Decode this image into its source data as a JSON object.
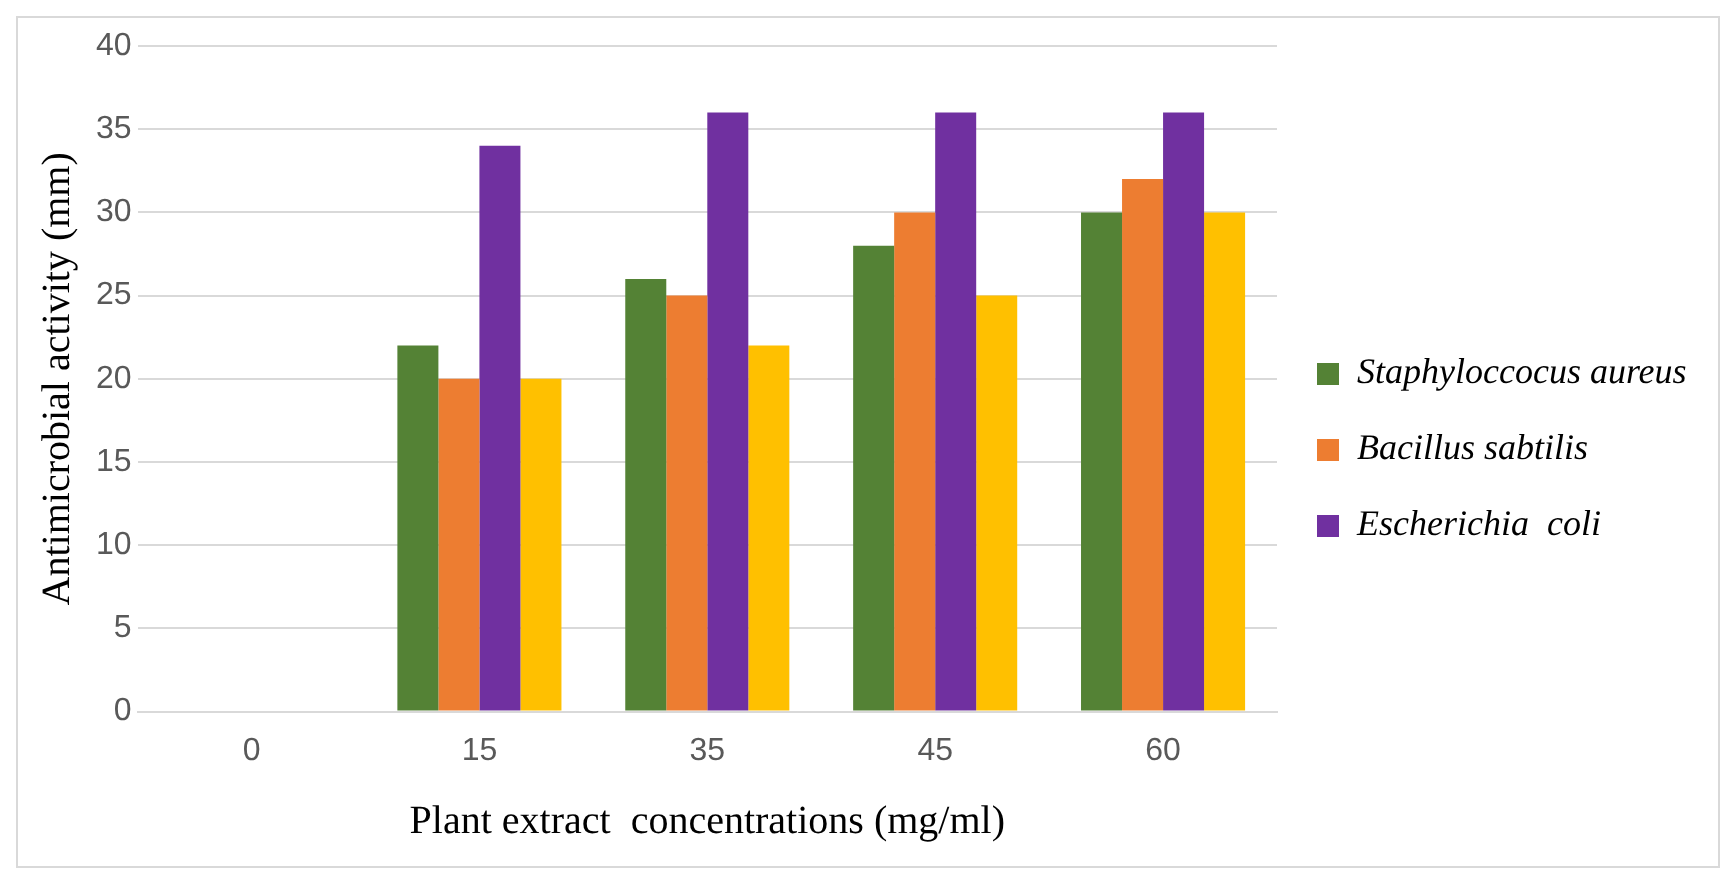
{
  "chart_data": {
    "type": "bar",
    "xlabel": "Plant extract  concentrations (mg/ml)",
    "ylabel": "Antimicrobial activity (mm)",
    "categories": [
      "0",
      "15",
      "35",
      "45",
      "60"
    ],
    "series": [
      {
        "name": "Staphyloccocus aureus",
        "color": "#548235",
        "values": [
          0,
          22,
          26,
          28,
          30
        ]
      },
      {
        "name": "Bacillus sabtilis",
        "color": "#ed7d31",
        "values": [
          0,
          20,
          25,
          30,
          32
        ]
      },
      {
        "name": "Escherichia  coli",
        "color": "#7030a0",
        "values": [
          0,
          34,
          36,
          36,
          36
        ]
      },
      {
        "color": "#ffc000",
        "values": [
          0,
          20,
          22,
          25,
          30
        ]
      }
    ],
    "ylim": [
      0,
      40
    ],
    "yticks": [
      0,
      5,
      10,
      15,
      20,
      25,
      30,
      35,
      40
    ],
    "grid": "y",
    "legend": "right"
  }
}
